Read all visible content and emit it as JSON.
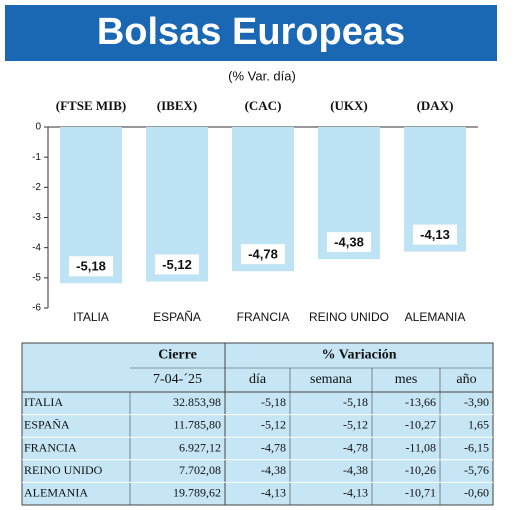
{
  "chart_data": {
    "type": "bar",
    "title": "Bolsas Europeas",
    "subtitle": "(% Var. día)",
    "index_labels": [
      "(FTSE MIB)",
      "(IBEX)",
      "(CAC)",
      "(UKX)",
      "(DAX)"
    ],
    "categories": [
      "ITALIA",
      "ESPAÑA",
      "FRANCIA",
      "REINO UNIDO",
      "ALEMANIA"
    ],
    "values": [
      -5.18,
      -5.12,
      -4.78,
      -4.38,
      -4.13
    ],
    "value_labels": [
      "-5,18",
      "-5,12",
      "-4,78",
      "-4,38",
      "-4,13"
    ],
    "color": "#bde3f5",
    "ylim": [
      -6,
      0
    ],
    "yticks": [
      0,
      -1,
      -2,
      -3,
      -4,
      -5,
      -6
    ]
  },
  "table": {
    "header": [
      "Cierre",
      "% Variación"
    ],
    "subheader": [
      "7-04-´25",
      "día",
      "semana",
      "mes",
      "año"
    ],
    "rows": [
      [
        "ITALIA",
        "32.853,98",
        "-5,18",
        "-5,18",
        "-13,66",
        "-3,90"
      ],
      [
        "ESPAÑA",
        "11.785,80",
        "-5,12",
        "-5,12",
        "-10,27",
        "1,65"
      ],
      [
        "FRANCIA",
        "6.927,12",
        "-4,78",
        "-4,78",
        "-11,08",
        "-6,15"
      ],
      [
        "REINO UNIDO",
        "7.702,08",
        "-4,38",
        "-4,38",
        "-10,26",
        "-5,76"
      ],
      [
        "ALEMANIA",
        "19.789,62",
        "-4,13",
        "-4,13",
        "-10,71",
        "-0,60"
      ]
    ]
  }
}
